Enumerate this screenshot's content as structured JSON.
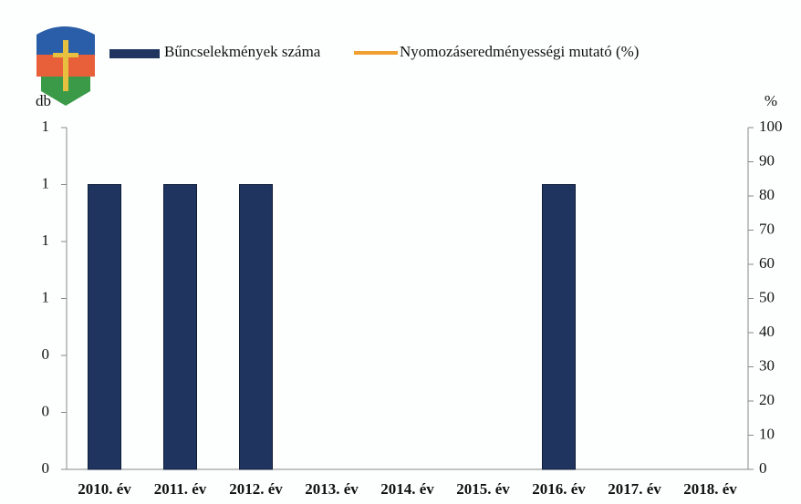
{
  "chart_data": {
    "type": "bar",
    "categories": [
      "2010. év",
      "2011. év",
      "2012. év",
      "2013. év",
      "2014. év",
      "2015. év",
      "2016. év",
      "2017. év",
      "2018. év"
    ],
    "series": [
      {
        "name": "Bűncselekmények száma",
        "color": "#1f3560",
        "values": [
          1,
          1,
          1,
          0,
          0,
          0,
          1,
          0,
          0
        ]
      },
      {
        "name": "Nyomozáseredményességi mutató (%)",
        "color": "#f0a030",
        "axis": "y2",
        "values": [
          null,
          null,
          null,
          null,
          null,
          null,
          null,
          null,
          null
        ]
      }
    ],
    "ylabel": "db",
    "y2label": "%",
    "ylim": [
      0,
      1.2
    ],
    "yticks": [
      0,
      {
        "value": 0.2,
        "label": "0"
      },
      {
        "value": 0.4,
        "label": "0"
      },
      {
        "value": 0.6,
        "label": "1"
      },
      {
        "value": 0.8,
        "label": "1"
      },
      1,
      {
        "value": 1.2,
        "label": "1"
      }
    ],
    "y2lim": [
      0,
      100
    ],
    "y2ticks": [
      0,
      10,
      20,
      30,
      40,
      50,
      60,
      70,
      80,
      90,
      100
    ]
  }
}
